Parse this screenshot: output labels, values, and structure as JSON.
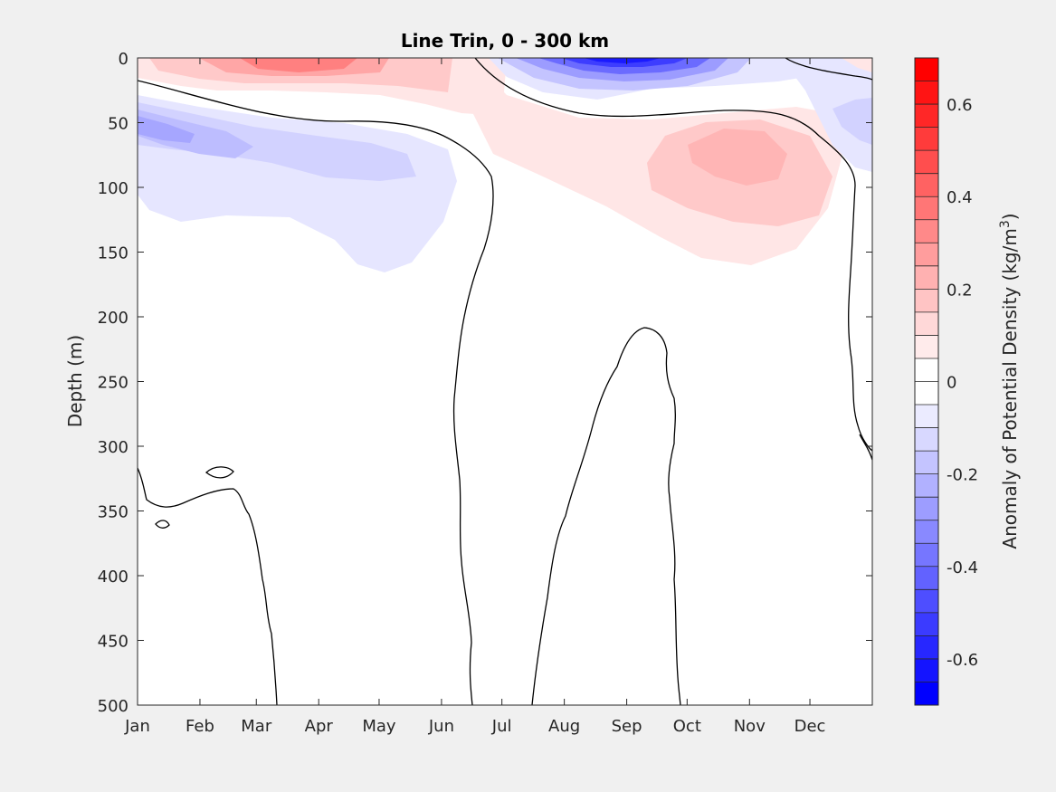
{
  "chart_data": {
    "type": "heatmap",
    "title": "Line Trin, 0 - 300 km",
    "xlabel": "",
    "ylabel": "Depth (m)",
    "x_ticks": [
      "Jan",
      "Feb",
      "Mar",
      "Apr",
      "May",
      "Jun",
      "Jul",
      "Aug",
      "Sep",
      "Oct",
      "Nov",
      "Dec"
    ],
    "y_ticks": [
      0,
      50,
      100,
      150,
      200,
      250,
      300,
      350,
      400,
      450,
      500
    ],
    "ylim": [
      0,
      500
    ],
    "y_reversed": true,
    "colorbar": {
      "label": "Anomaly of Potential Density (kg/m3)",
      "label_main": "Anomaly of Potential Density (kg/m",
      "label_sup": "3",
      "label_end": ")",
      "range": [
        -0.7,
        0.7
      ],
      "levels": 28,
      "ticks": [
        "0.6",
        "0.4",
        "0.2",
        "0",
        "-0.2",
        "-0.4",
        "-0.6"
      ],
      "tick_values": [
        0.6,
        0.4,
        0.2,
        0,
        -0.2,
        -0.4,
        -0.6
      ],
      "color_positive": "#ff0000",
      "color_negative": "#0000ff",
      "color_zero": "#ffffff"
    },
    "features": [
      {
        "name": "positive-anomaly-feb-may-surface",
        "value": 0.25,
        "month": 3.1,
        "depth": 5
      },
      {
        "name": "negative-anomaly-jan-may-subsurface",
        "value": -0.15,
        "month": 1.0,
        "depth": 55
      },
      {
        "name": "negative-anomaly-aug-oct-surface",
        "value": -0.6,
        "month": 8.8,
        "depth": 0
      },
      {
        "name": "positive-anomaly-jun-nov-subsurface",
        "value": 0.12,
        "month": 9.8,
        "depth": 75
      },
      {
        "name": "negative-anomaly-nov-dec-surface",
        "value": -0.1,
        "month": 11.5,
        "depth": 40
      }
    ],
    "grid": false
  }
}
